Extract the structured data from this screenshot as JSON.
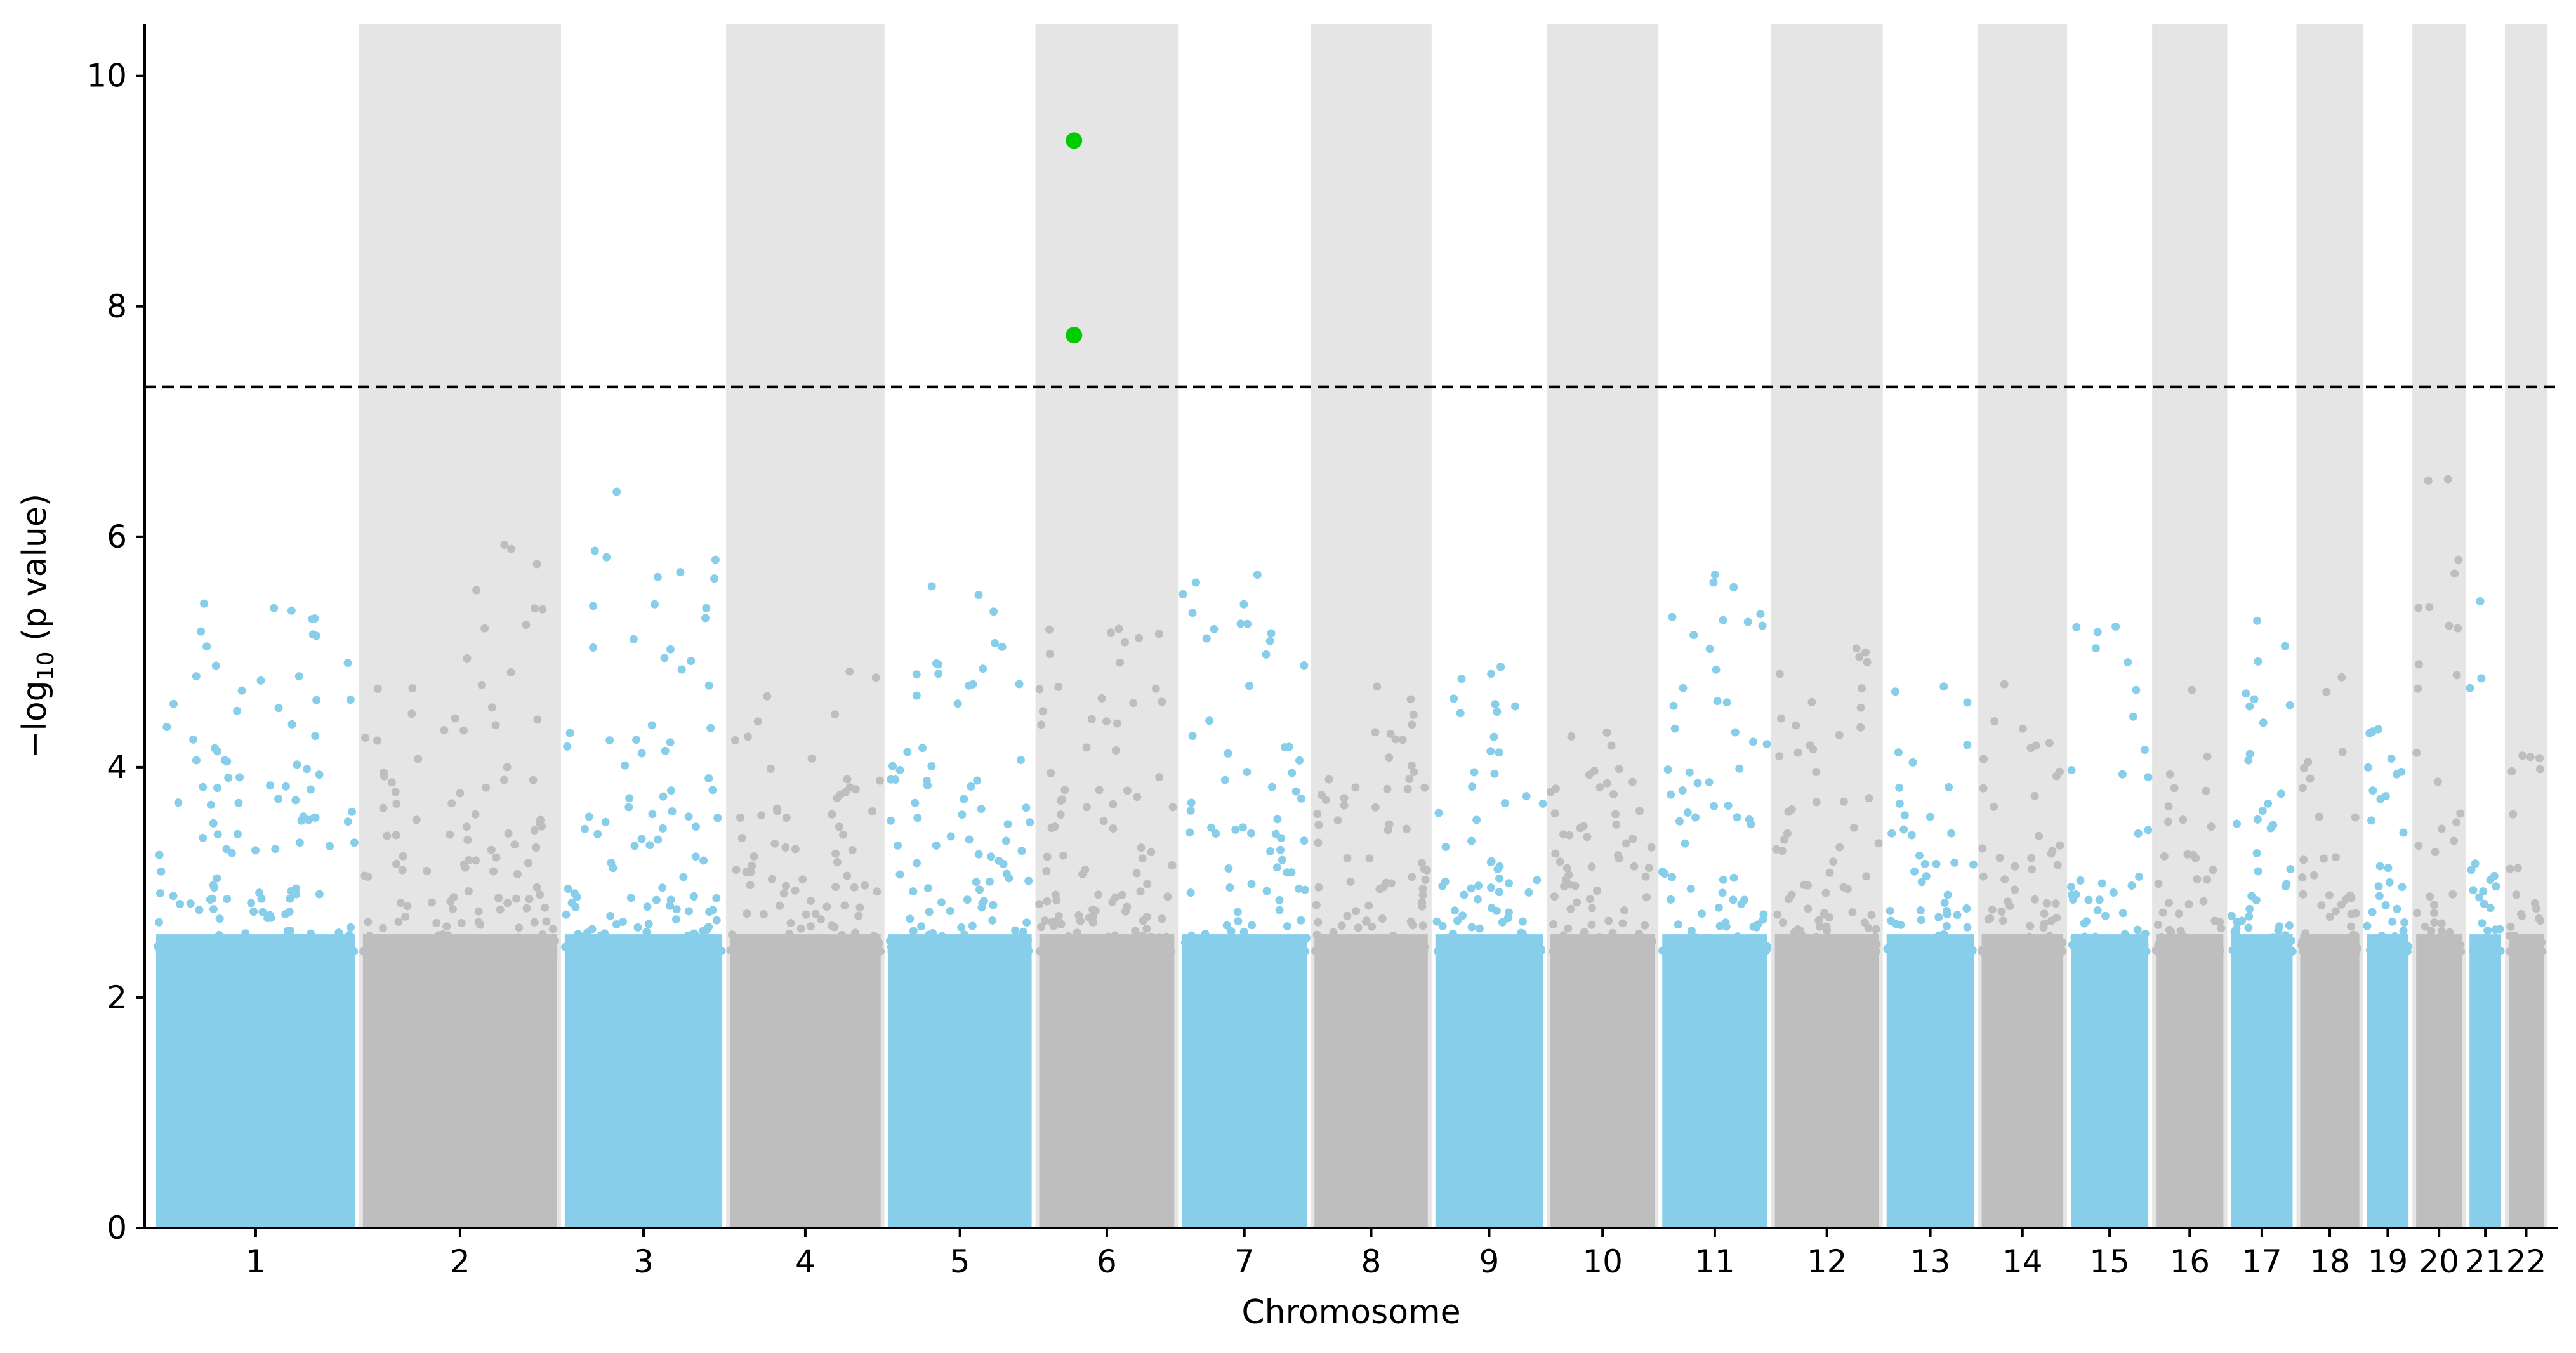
{
  "chart_data": {
    "type": "scatter",
    "title": "",
    "xlabel": "Chromosome",
    "ylabel_main": "−log",
    "ylabel_sub": "10",
    "ylabel_rest": " (p value)",
    "ylim": [
      0,
      10.45
    ],
    "yticks": [
      0,
      2,
      4,
      6,
      8,
      10
    ],
    "threshold": 7.3,
    "grid": false,
    "colors": {
      "odd_chrom": "#87ceeb",
      "even_chrom": "#bebebe",
      "band_shade": "#e5e5e5",
      "significant": "#00cc00",
      "threshold_line": "#000000"
    },
    "chromosomes": [
      {
        "label": "1",
        "start": 0,
        "end": 248
      },
      {
        "label": "2",
        "start": 248,
        "end": 490
      },
      {
        "label": "3",
        "start": 490,
        "end": 688
      },
      {
        "label": "4",
        "start": 688,
        "end": 878
      },
      {
        "label": "5",
        "start": 878,
        "end": 1059
      },
      {
        "label": "6",
        "start": 1059,
        "end": 1230
      },
      {
        "label": "7",
        "start": 1230,
        "end": 1389
      },
      {
        "label": "8",
        "start": 1389,
        "end": 1534
      },
      {
        "label": "9",
        "start": 1534,
        "end": 1672
      },
      {
        "label": "10",
        "start": 1672,
        "end": 1806
      },
      {
        "label": "11",
        "start": 1806,
        "end": 1941
      },
      {
        "label": "12",
        "start": 1941,
        "end": 2075
      },
      {
        "label": "13",
        "start": 2075,
        "end": 2189
      },
      {
        "label": "14",
        "start": 2189,
        "end": 2296
      },
      {
        "label": "15",
        "start": 2296,
        "end": 2398
      },
      {
        "label": "16",
        "start": 2398,
        "end": 2488
      },
      {
        "label": "17",
        "start": 2488,
        "end": 2571
      },
      {
        "label": "18",
        "start": 2571,
        "end": 2651
      },
      {
        "label": "19",
        "start": 2651,
        "end": 2710
      },
      {
        "label": "20",
        "start": 2710,
        "end": 2774
      },
      {
        "label": "21",
        "start": 2774,
        "end": 2821
      },
      {
        "label": "22",
        "start": 2821,
        "end": 2872
      }
    ],
    "significant_points": [
      {
        "chrom": "6",
        "y": 9.44
      },
      {
        "chrom": "6",
        "y": 7.75
      }
    ],
    "chromosome_peaks": [
      5.42,
      5.93,
      6.39,
      4.83,
      5.57,
      5.2,
      5.67,
      4.7,
      4.87,
      4.3,
      5.67,
      5.03,
      4.7,
      4.72,
      5.22,
      4.67,
      5.27,
      4.78,
      4.33,
      6.5,
      5.44,
      4.1
    ]
  }
}
